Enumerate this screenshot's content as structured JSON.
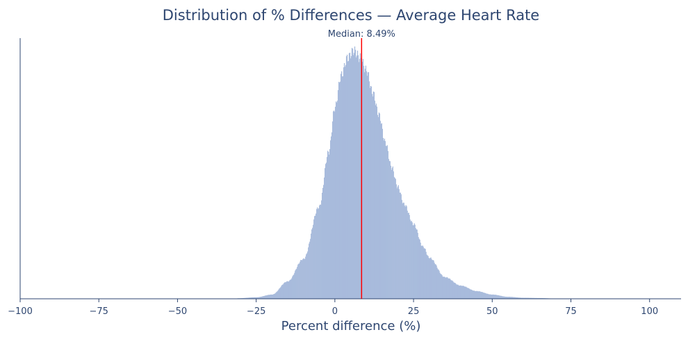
{
  "chart_data": {
    "type": "bar",
    "title": "Distribution of % Differences — Average Heart Rate",
    "xlabel": "Percent difference (%)",
    "ylabel": "",
    "xlim": [
      -100,
      110
    ],
    "xticks": [
      "−100",
      "−75",
      "−50",
      "−25",
      "0",
      "25",
      "50",
      "75",
      "100"
    ],
    "xtick_values": [
      -100,
      -75,
      -50,
      -25,
      0,
      25,
      50,
      75,
      100
    ],
    "y_axis_ticks_shown": false,
    "grid": false,
    "series": [
      {
        "note_units": "relative frequency (peak = 1)",
        "x": [
          -31,
          -25,
          -20,
          -15,
          -10,
          -5,
          -2,
          0,
          2,
          4,
          6,
          8,
          10,
          12,
          14,
          16,
          18,
          20,
          22,
          25,
          28,
          30,
          35,
          40,
          45,
          50,
          55,
          60,
          65,
          70,
          72
        ],
        "values": [
          0.002,
          0.006,
          0.017,
          0.07,
          0.16,
          0.37,
          0.59,
          0.77,
          0.9,
          0.97,
          1.0,
          0.97,
          0.92,
          0.83,
          0.74,
          0.63,
          0.53,
          0.45,
          0.38,
          0.3,
          0.21,
          0.165,
          0.087,
          0.053,
          0.031,
          0.017,
          0.008,
          0.004,
          0.003,
          0.001,
          0
        ]
      }
    ],
    "median": 8.49,
    "median_label": "Median: 8.49%",
    "colors": {
      "bars": "#a8bbdc",
      "median_line": "#ff0000",
      "text": "#2e4670"
    }
  }
}
